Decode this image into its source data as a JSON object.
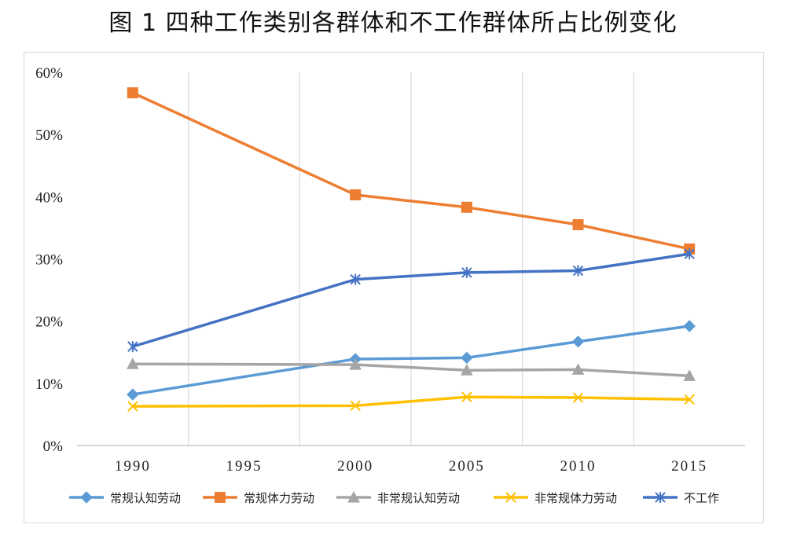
{
  "chart_data": {
    "type": "line",
    "title": "图 1  四种工作类别各群体和不工作群体所占比例变化",
    "xlabel": "",
    "ylabel": "",
    "x": [
      1990,
      1995,
      2000,
      2005,
      2010,
      2015
    ],
    "x_tick_labels": [
      "1990",
      "1995",
      "2000",
      "2005",
      "2010",
      "2015"
    ],
    "ylim": [
      0,
      60
    ],
    "y_ticks": [
      0,
      10,
      20,
      30,
      40,
      50,
      60
    ],
    "y_tick_labels": [
      "0%",
      "10%",
      "20%",
      "30%",
      "40%",
      "50%",
      "60%"
    ],
    "grid": "vertical",
    "legend_position": "bottom",
    "series": [
      {
        "name": "常规认知劳动",
        "color": "#5b9bd5",
        "marker": "diamond",
        "x": [
          1990,
          2000,
          2005,
          2010,
          2015
        ],
        "values": [
          8.2,
          13.9,
          14.1,
          16.7,
          19.2
        ]
      },
      {
        "name": "常规体力劳动",
        "color": "#ed7d31",
        "marker": "square",
        "x": [
          1990,
          2000,
          2005,
          2010,
          2015
        ],
        "values": [
          56.7,
          40.3,
          38.3,
          35.5,
          31.6
        ]
      },
      {
        "name": "非常规认知劳动",
        "color": "#a5a5a5",
        "marker": "triangle",
        "x": [
          1990,
          2000,
          2005,
          2010,
          2015
        ],
        "values": [
          13.1,
          13.0,
          12.1,
          12.2,
          11.2
        ]
      },
      {
        "name": "非常规体力劳动",
        "color": "#ffc000",
        "marker": "x",
        "x": [
          1990,
          2000,
          2005,
          2010,
          2015
        ],
        "values": [
          6.3,
          6.4,
          7.8,
          7.7,
          7.4
        ]
      },
      {
        "name": "不工作",
        "color": "#4472c4",
        "marker": "star",
        "x": [
          1990,
          2000,
          2005,
          2010,
          2015
        ],
        "values": [
          15.9,
          26.7,
          27.8,
          28.1,
          30.8
        ]
      }
    ]
  }
}
